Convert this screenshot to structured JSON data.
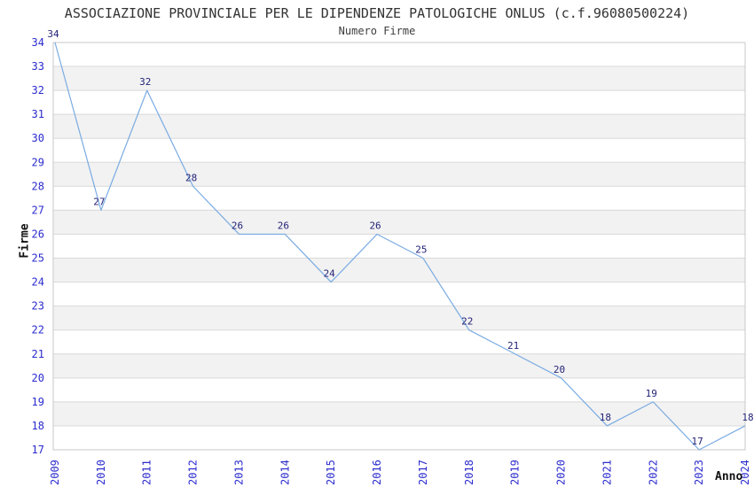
{
  "chart_data": {
    "type": "line",
    "title": "ASSOCIAZIONE PROVINCIALE PER LE DIPENDENZE PATOLOGICHE ONLUS (c.f.96080500224)",
    "subtitle": "Numero Firme",
    "xlabel": "Anno",
    "ylabel": "Firme",
    "categories": [
      "2009",
      "2010",
      "2011",
      "2012",
      "2013",
      "2014",
      "2015",
      "2016",
      "2017",
      "2018",
      "2019",
      "2020",
      "2021",
      "2022",
      "2023",
      "2024"
    ],
    "values": [
      34,
      27,
      32,
      28,
      26,
      26,
      24,
      26,
      25,
      22,
      21,
      20,
      18,
      19,
      17,
      18
    ],
    "ylim": [
      17,
      34
    ],
    "ytick_step": 1,
    "grid": true,
    "legend": "none",
    "band_pattern": "alternating 1-unit horizontal bands, shaded on even-to-odd intervals (18-19, 20-21, ... 32-33)",
    "colors": {
      "line": "#7aabe2",
      "tick_label": "#2b2bce",
      "data_label": "#232378",
      "band": "#f2f2f2",
      "grid": "#d9d9d9",
      "frame": "#c9c9c9",
      "title": "#333333",
      "axis_label": "#111111",
      "background": "#ffffff"
    }
  }
}
